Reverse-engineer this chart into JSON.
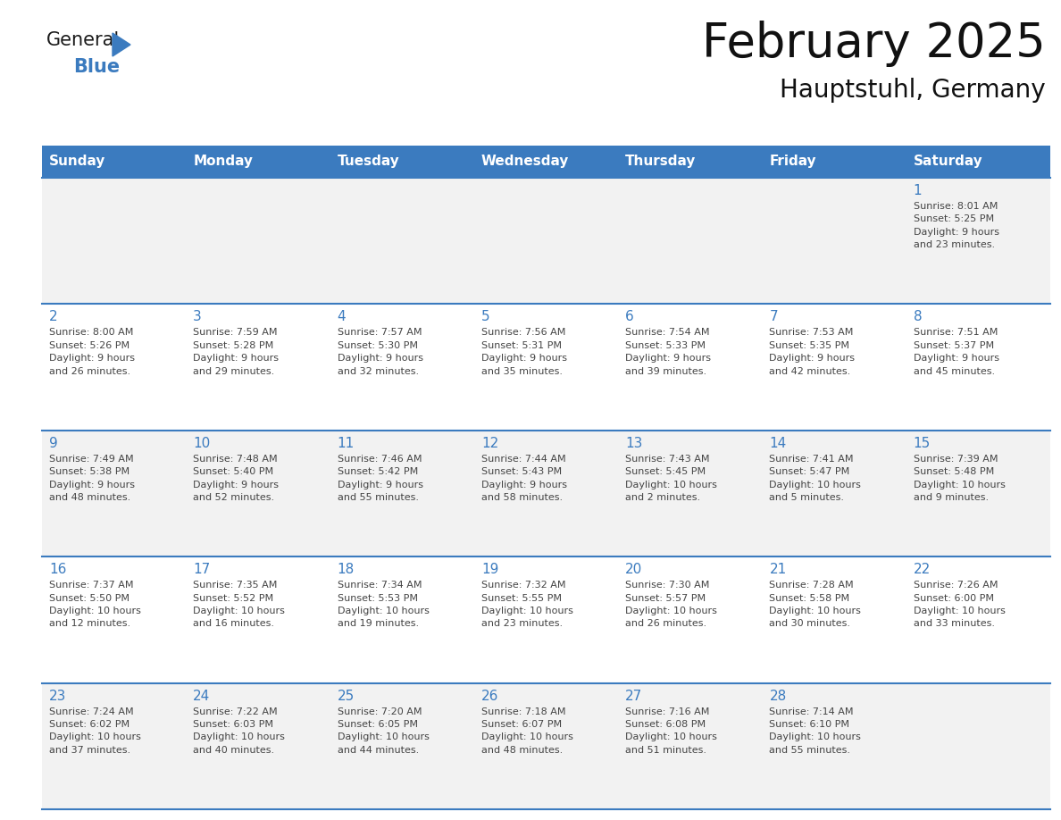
{
  "title": "February 2025",
  "subtitle": "Hauptstuhl, Germany",
  "days_of_week": [
    "Sunday",
    "Monday",
    "Tuesday",
    "Wednesday",
    "Thursday",
    "Friday",
    "Saturday"
  ],
  "header_bg_color": "#3b7bbf",
  "header_text_color": "#ffffff",
  "cell_bg_color_odd": "#f2f2f2",
  "cell_bg_color_even": "#ffffff",
  "grid_line_color": "#3b7bbf",
  "day_number_color": "#3b7bbf",
  "text_color": "#444444",
  "logo_general_color": "#1a1a1a",
  "logo_blue_color": "#3b7bbf",
  "background_color": "#ffffff",
  "weeks": [
    [
      {
        "day": null,
        "info": ""
      },
      {
        "day": null,
        "info": ""
      },
      {
        "day": null,
        "info": ""
      },
      {
        "day": null,
        "info": ""
      },
      {
        "day": null,
        "info": ""
      },
      {
        "day": null,
        "info": ""
      },
      {
        "day": 1,
        "info": "Sunrise: 8:01 AM\nSunset: 5:25 PM\nDaylight: 9 hours\nand 23 minutes."
      }
    ],
    [
      {
        "day": 2,
        "info": "Sunrise: 8:00 AM\nSunset: 5:26 PM\nDaylight: 9 hours\nand 26 minutes."
      },
      {
        "day": 3,
        "info": "Sunrise: 7:59 AM\nSunset: 5:28 PM\nDaylight: 9 hours\nand 29 minutes."
      },
      {
        "day": 4,
        "info": "Sunrise: 7:57 AM\nSunset: 5:30 PM\nDaylight: 9 hours\nand 32 minutes."
      },
      {
        "day": 5,
        "info": "Sunrise: 7:56 AM\nSunset: 5:31 PM\nDaylight: 9 hours\nand 35 minutes."
      },
      {
        "day": 6,
        "info": "Sunrise: 7:54 AM\nSunset: 5:33 PM\nDaylight: 9 hours\nand 39 minutes."
      },
      {
        "day": 7,
        "info": "Sunrise: 7:53 AM\nSunset: 5:35 PM\nDaylight: 9 hours\nand 42 minutes."
      },
      {
        "day": 8,
        "info": "Sunrise: 7:51 AM\nSunset: 5:37 PM\nDaylight: 9 hours\nand 45 minutes."
      }
    ],
    [
      {
        "day": 9,
        "info": "Sunrise: 7:49 AM\nSunset: 5:38 PM\nDaylight: 9 hours\nand 48 minutes."
      },
      {
        "day": 10,
        "info": "Sunrise: 7:48 AM\nSunset: 5:40 PM\nDaylight: 9 hours\nand 52 minutes."
      },
      {
        "day": 11,
        "info": "Sunrise: 7:46 AM\nSunset: 5:42 PM\nDaylight: 9 hours\nand 55 minutes."
      },
      {
        "day": 12,
        "info": "Sunrise: 7:44 AM\nSunset: 5:43 PM\nDaylight: 9 hours\nand 58 minutes."
      },
      {
        "day": 13,
        "info": "Sunrise: 7:43 AM\nSunset: 5:45 PM\nDaylight: 10 hours\nand 2 minutes."
      },
      {
        "day": 14,
        "info": "Sunrise: 7:41 AM\nSunset: 5:47 PM\nDaylight: 10 hours\nand 5 minutes."
      },
      {
        "day": 15,
        "info": "Sunrise: 7:39 AM\nSunset: 5:48 PM\nDaylight: 10 hours\nand 9 minutes."
      }
    ],
    [
      {
        "day": 16,
        "info": "Sunrise: 7:37 AM\nSunset: 5:50 PM\nDaylight: 10 hours\nand 12 minutes."
      },
      {
        "day": 17,
        "info": "Sunrise: 7:35 AM\nSunset: 5:52 PM\nDaylight: 10 hours\nand 16 minutes."
      },
      {
        "day": 18,
        "info": "Sunrise: 7:34 AM\nSunset: 5:53 PM\nDaylight: 10 hours\nand 19 minutes."
      },
      {
        "day": 19,
        "info": "Sunrise: 7:32 AM\nSunset: 5:55 PM\nDaylight: 10 hours\nand 23 minutes."
      },
      {
        "day": 20,
        "info": "Sunrise: 7:30 AM\nSunset: 5:57 PM\nDaylight: 10 hours\nand 26 minutes."
      },
      {
        "day": 21,
        "info": "Sunrise: 7:28 AM\nSunset: 5:58 PM\nDaylight: 10 hours\nand 30 minutes."
      },
      {
        "day": 22,
        "info": "Sunrise: 7:26 AM\nSunset: 6:00 PM\nDaylight: 10 hours\nand 33 minutes."
      }
    ],
    [
      {
        "day": 23,
        "info": "Sunrise: 7:24 AM\nSunset: 6:02 PM\nDaylight: 10 hours\nand 37 minutes."
      },
      {
        "day": 24,
        "info": "Sunrise: 7:22 AM\nSunset: 6:03 PM\nDaylight: 10 hours\nand 40 minutes."
      },
      {
        "day": 25,
        "info": "Sunrise: 7:20 AM\nSunset: 6:05 PM\nDaylight: 10 hours\nand 44 minutes."
      },
      {
        "day": 26,
        "info": "Sunrise: 7:18 AM\nSunset: 6:07 PM\nDaylight: 10 hours\nand 48 minutes."
      },
      {
        "day": 27,
        "info": "Sunrise: 7:16 AM\nSunset: 6:08 PM\nDaylight: 10 hours\nand 51 minutes."
      },
      {
        "day": 28,
        "info": "Sunrise: 7:14 AM\nSunset: 6:10 PM\nDaylight: 10 hours\nand 55 minutes."
      },
      {
        "day": null,
        "info": ""
      }
    ]
  ]
}
